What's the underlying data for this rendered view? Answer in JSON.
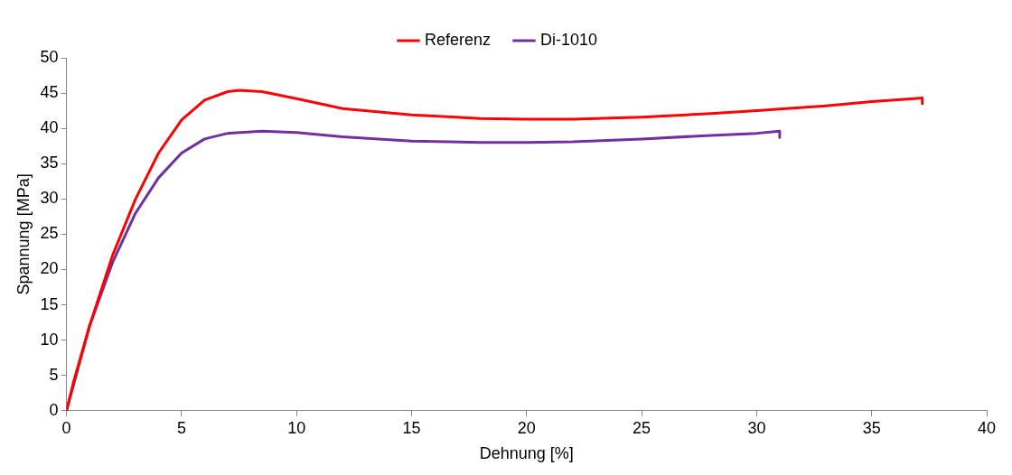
{
  "chart_data": {
    "type": "line",
    "xlabel": "Dehnung [%]",
    "ylabel": "Spannung [MPa]",
    "xlim": [
      0,
      40
    ],
    "xticks": [
      0,
      5,
      10,
      15,
      20,
      25,
      30,
      35,
      40
    ],
    "ylim": [
      0,
      50
    ],
    "yticks": [
      0,
      5,
      10,
      15,
      20,
      25,
      30,
      35,
      40,
      45,
      50
    ],
    "grid": false,
    "legend": "top",
    "marker": "none",
    "line_style": "solid",
    "series": [
      {
        "name": "Referenz",
        "color": "#ff0000",
        "x": [
          0,
          0.3,
          1,
          2,
          3,
          4,
          5,
          6,
          7,
          7.5,
          8.5,
          10,
          12,
          15,
          18,
          20,
          22,
          25,
          28,
          30,
          33,
          35,
          37.2,
          37.2
        ],
        "values": [
          0,
          4,
          12,
          22,
          30,
          36.5,
          41.2,
          44,
          45.2,
          45.4,
          45.2,
          44.2,
          42.8,
          41.9,
          41.4,
          41.3,
          41.3,
          41.6,
          42.1,
          42.5,
          43.2,
          43.8,
          44.3,
          43.5
        ]
      },
      {
        "name": "Di-1010",
        "color": "#7030a0",
        "x": [
          0,
          0.5,
          1,
          2,
          3,
          4,
          5,
          6,
          7,
          8.5,
          10,
          12,
          15,
          18,
          20,
          22,
          25,
          28,
          30,
          31,
          31
        ],
        "values": [
          0,
          6,
          12,
          21,
          28,
          33,
          36.5,
          38.5,
          39.3,
          39.6,
          39.4,
          38.8,
          38.2,
          38,
          38,
          38.1,
          38.5,
          39,
          39.3,
          39.6,
          38.7
        ]
      }
    ]
  }
}
